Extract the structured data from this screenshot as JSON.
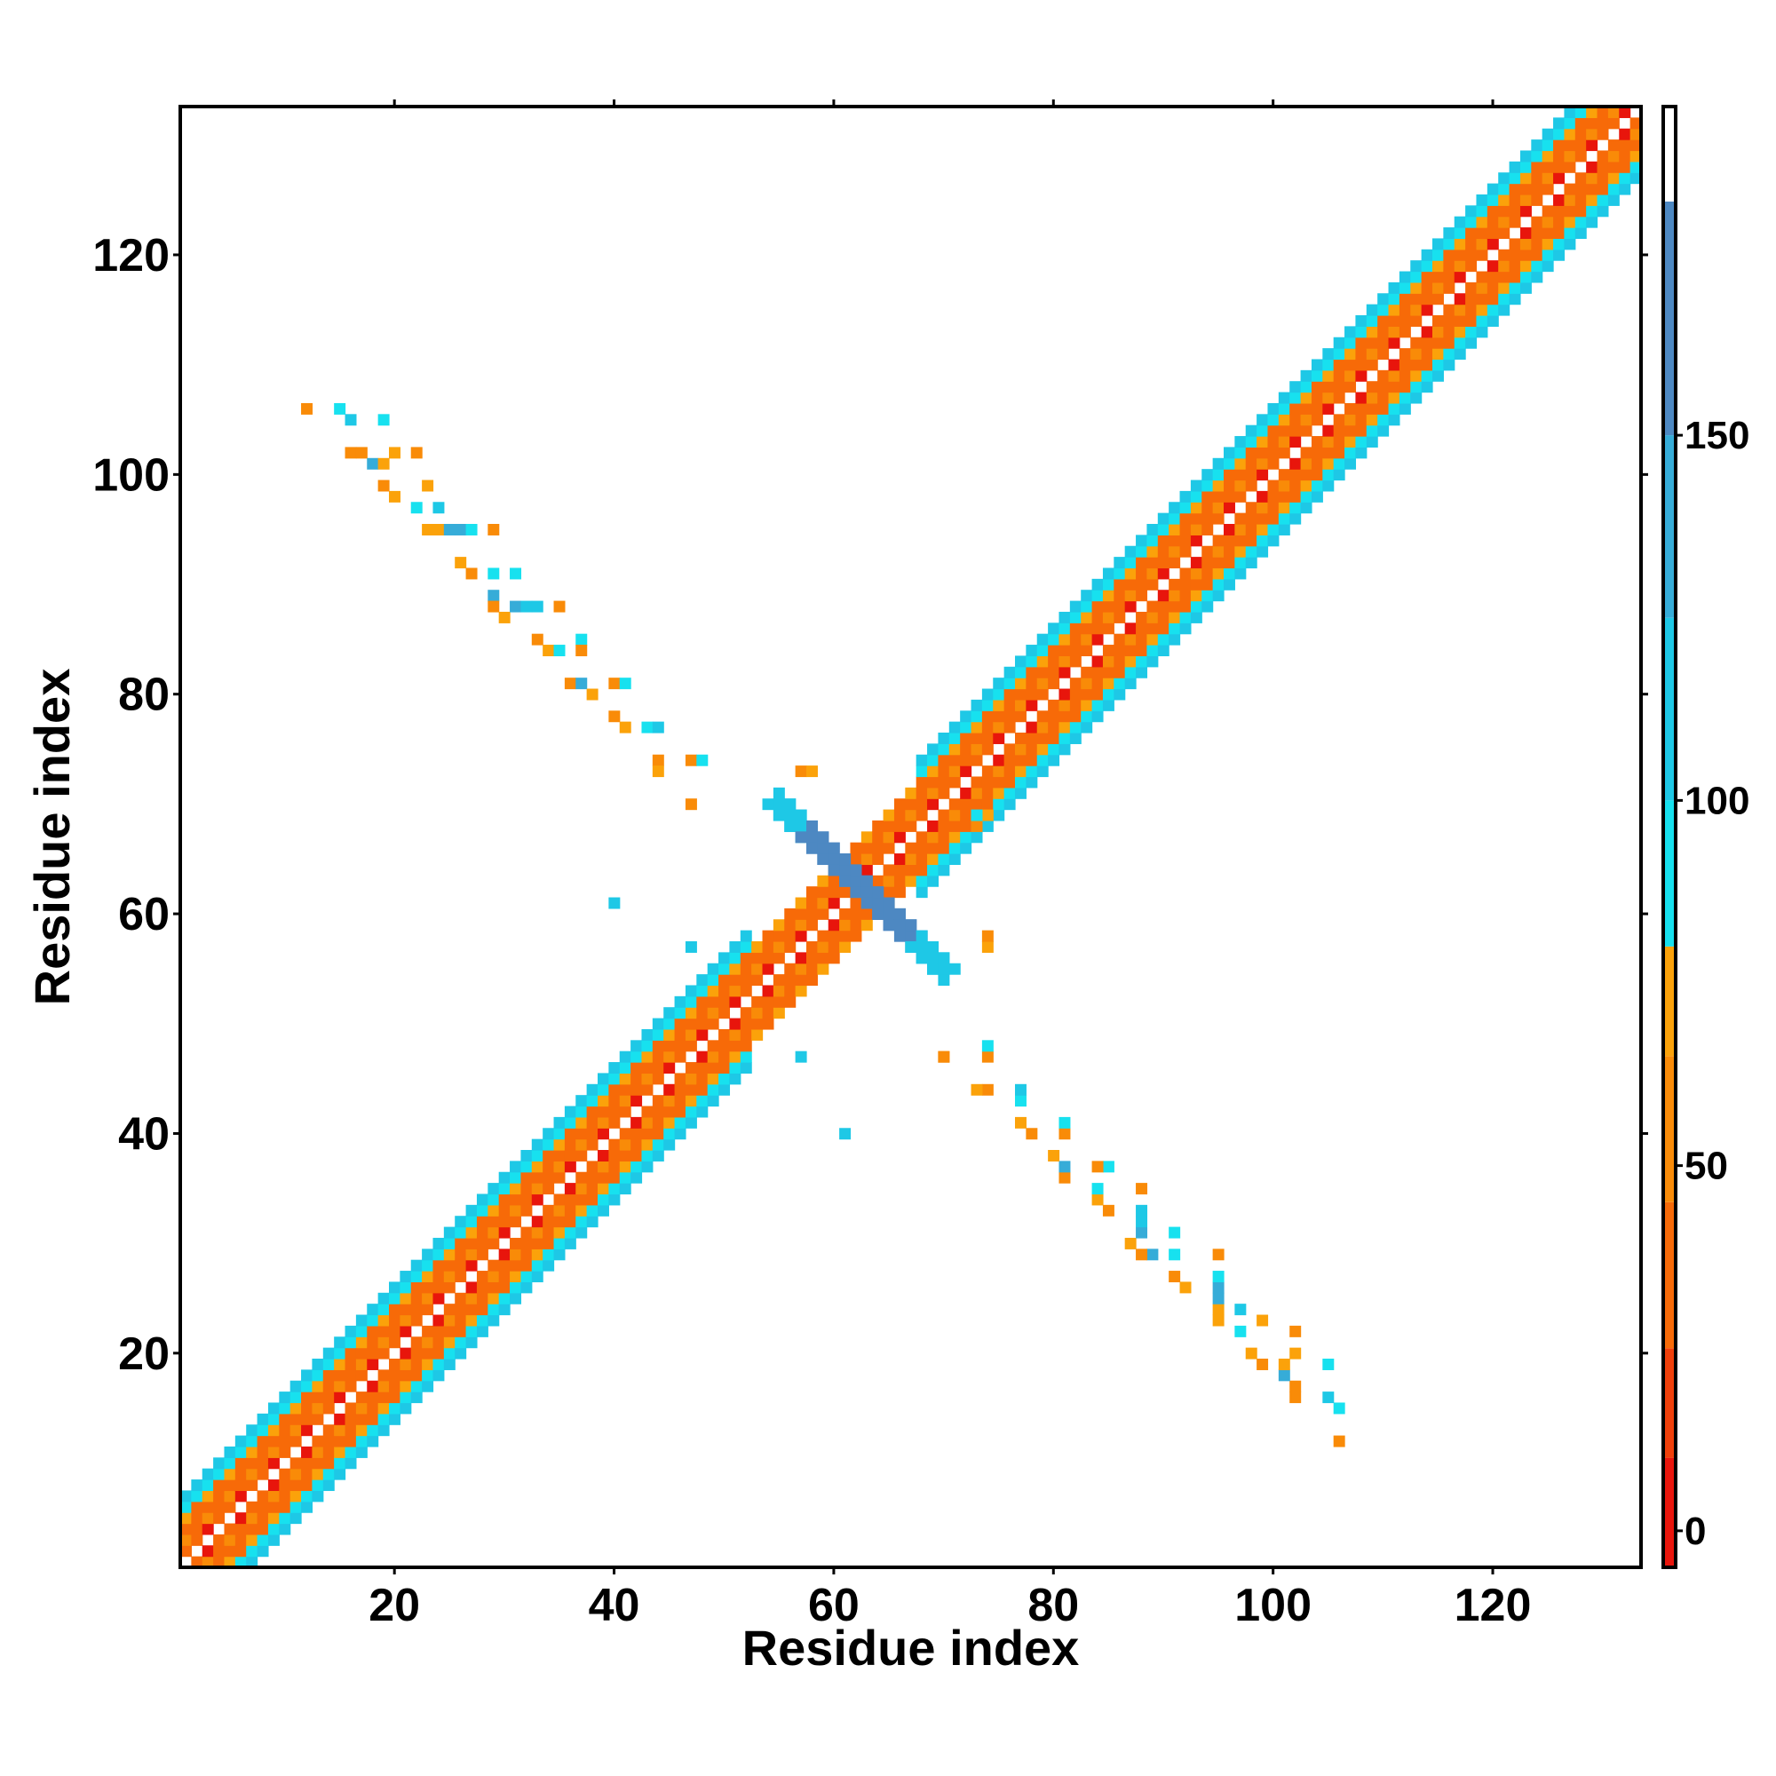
{
  "chart_data": {
    "type": "heatmap",
    "title": "",
    "xlabel": "Residue index",
    "ylabel": "Residue index",
    "xlim": [
      1,
      133
    ],
    "ylim": [
      1,
      133
    ],
    "x_ticks": [
      20,
      40,
      60,
      80,
      100,
      120
    ],
    "y_ticks": [
      20,
      40,
      60,
      80,
      100,
      120
    ],
    "colorbar": {
      "ticks": [
        0,
        50,
        100,
        150
      ],
      "range": [
        -5,
        195
      ],
      "bands": [
        {
          "from": -5,
          "to": 10,
          "color": "#e8150c"
        },
        {
          "from": 10,
          "to": 25,
          "color": "#f03f0a"
        },
        {
          "from": 25,
          "to": 45,
          "color": "#f76a08"
        },
        {
          "from": 45,
          "to": 65,
          "color": "#f98b08"
        },
        {
          "from": 65,
          "to": 80,
          "color": "#fba20a"
        },
        {
          "from": 80,
          "to": 100,
          "color": "#17e1ef"
        },
        {
          "from": 100,
          "to": 125,
          "color": "#1ec8e6"
        },
        {
          "from": 125,
          "to": 150,
          "color": "#36acd8"
        },
        {
          "from": 150,
          "to": 182,
          "color": "#4d88c2"
        },
        {
          "from": 182,
          "to": 195,
          "color": "#ffffff"
        }
      ]
    },
    "diagonal_band": {
      "description": "contacts |i-j|<=6 along the main diagonal, alternating orange/red/cyan",
      "half_width": 6,
      "start": 1,
      "end": 133
    },
    "antiparallel_contacts": [
      [
        12,
        106,
        60
      ],
      [
        15,
        106,
        95
      ],
      [
        16,
        105,
        105
      ],
      [
        19,
        105,
        95
      ],
      [
        16,
        102,
        60
      ],
      [
        17,
        102,
        60
      ],
      [
        18,
        101,
        140
      ],
      [
        19,
        101,
        65
      ],
      [
        20,
        102,
        65
      ],
      [
        22,
        102,
        50
      ],
      [
        19,
        99,
        60
      ],
      [
        20,
        98,
        65
      ],
      [
        23,
        99,
        65
      ],
      [
        22,
        97,
        95
      ],
      [
        24,
        97,
        105
      ],
      [
        23,
        95,
        65
      ],
      [
        24,
        95,
        70
      ],
      [
        25,
        95,
        130
      ],
      [
        26,
        95,
        130
      ],
      [
        27,
        95,
        95
      ],
      [
        29,
        95,
        50
      ],
      [
        26,
        92,
        65
      ],
      [
        27,
        91,
        60
      ],
      [
        29,
        91,
        95
      ],
      [
        31,
        91,
        95
      ],
      [
        29,
        89,
        130
      ],
      [
        29,
        88,
        60
      ],
      [
        30,
        87,
        65
      ],
      [
        31,
        88,
        130
      ],
      [
        32,
        88,
        105
      ],
      [
        33,
        88,
        105
      ],
      [
        35,
        88,
        50
      ],
      [
        33,
        85,
        60
      ],
      [
        34,
        84,
        65
      ],
      [
        35,
        84,
        95
      ],
      [
        37,
        85,
        95
      ],
      [
        37,
        84,
        50
      ],
      [
        36,
        81,
        60
      ],
      [
        37,
        81,
        130
      ],
      [
        38,
        80,
        65
      ],
      [
        40,
        81,
        50
      ],
      [
        41,
        81,
        95
      ],
      [
        40,
        78,
        60
      ],
      [
        41,
        77,
        65
      ],
      [
        43,
        77,
        95
      ],
      [
        44,
        77,
        105
      ],
      [
        44,
        74,
        60
      ],
      [
        44,
        73,
        65
      ],
      [
        47,
        74,
        50
      ],
      [
        48,
        74,
        95
      ],
      [
        47,
        70,
        60
      ],
      [
        40,
        61,
        105
      ],
      [
        47,
        57,
        105
      ],
      [
        57,
        47,
        105
      ],
      [
        61,
        40,
        105
      ],
      [
        106,
        12,
        60
      ],
      [
        106,
        15,
        95
      ],
      [
        105,
        16,
        105
      ],
      [
        105,
        19,
        95
      ],
      [
        102,
        16,
        60
      ],
      [
        102,
        17,
        60
      ],
      [
        101,
        18,
        140
      ],
      [
        101,
        19,
        65
      ],
      [
        102,
        20,
        65
      ],
      [
        102,
        22,
        50
      ],
      [
        99,
        19,
        60
      ],
      [
        98,
        20,
        65
      ],
      [
        99,
        23,
        65
      ],
      [
        97,
        22,
        95
      ],
      [
        97,
        24,
        105
      ],
      [
        95,
        23,
        65
      ],
      [
        95,
        24,
        70
      ],
      [
        95,
        25,
        130
      ],
      [
        95,
        26,
        130
      ],
      [
        95,
        27,
        95
      ],
      [
        95,
        29,
        50
      ],
      [
        92,
        26,
        65
      ],
      [
        91,
        27,
        60
      ],
      [
        91,
        29,
        95
      ],
      [
        91,
        31,
        95
      ],
      [
        89,
        29,
        130
      ],
      [
        88,
        29,
        60
      ],
      [
        87,
        30,
        65
      ],
      [
        88,
        31,
        130
      ],
      [
        88,
        32,
        105
      ],
      [
        88,
        33,
        105
      ],
      [
        88,
        35,
        50
      ],
      [
        85,
        33,
        60
      ],
      [
        84,
        34,
        65
      ],
      [
        84,
        35,
        95
      ],
      [
        85,
        37,
        95
      ],
      [
        84,
        37,
        50
      ],
      [
        81,
        36,
        60
      ],
      [
        81,
        37,
        130
      ],
      [
        80,
        38,
        65
      ],
      [
        81,
        40,
        50
      ],
      [
        81,
        41,
        95
      ],
      [
        78,
        40,
        60
      ],
      [
        77,
        41,
        65
      ],
      [
        77,
        43,
        95
      ],
      [
        77,
        44,
        105
      ],
      [
        74,
        44,
        60
      ],
      [
        73,
        44,
        65
      ],
      [
        74,
        47,
        50
      ],
      [
        74,
        48,
        95
      ],
      [
        70,
        47,
        60
      ],
      [
        57,
        73,
        60
      ],
      [
        58,
        73,
        65
      ],
      [
        74,
        57,
        65
      ],
      [
        74,
        58,
        60
      ],
      [
        73,
        68,
        60
      ],
      [
        74,
        69,
        65
      ],
      [
        73,
        69,
        95
      ],
      [
        70,
        47,
        60
      ]
    ],
    "cross_cluster": {
      "description": "perpendicular cluster near residues 55-70 crossing the diagonal",
      "center": [
        63,
        63
      ],
      "from": [
        55,
        70
      ],
      "to": [
        70,
        55
      ]
    }
  }
}
